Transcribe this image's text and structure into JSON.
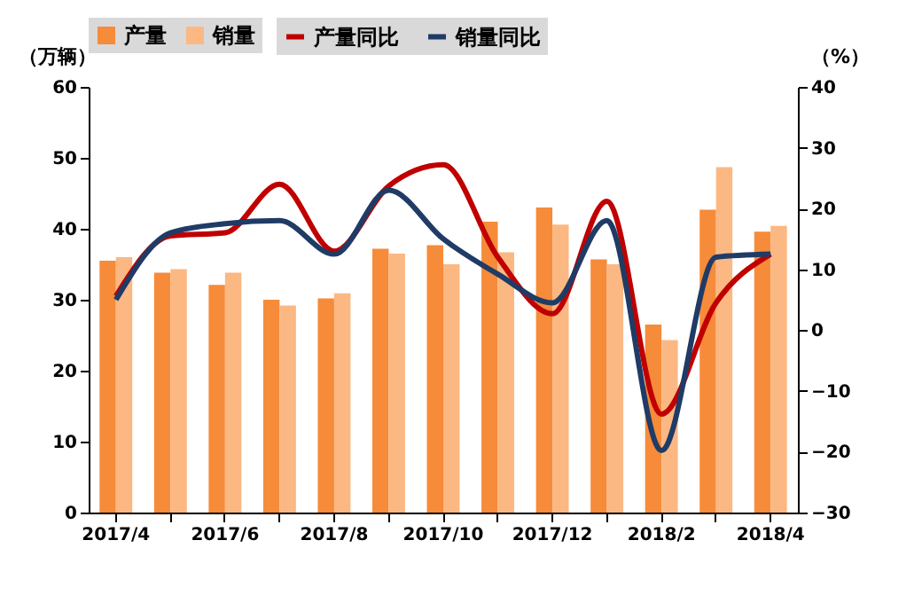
{
  "chart_data": {
    "type": "bar",
    "ylabel": "（万辆）",
    "y2label": "（%）",
    "categories": [
      "2017/4",
      null,
      "2017/6",
      null,
      "2017/8",
      null,
      "2017/10",
      null,
      "2017/12",
      null,
      "2018/2",
      null,
      "2018/4"
    ],
    "series": [
      {
        "name": "产量",
        "color": "#f68b3a",
        "values": [
          35.5,
          33.8,
          32.1,
          30.0,
          30.2,
          37.2,
          37.7,
          41.0,
          43.0,
          35.7,
          26.5,
          42.7,
          39.6
        ]
      },
      {
        "name": "销量",
        "color": "#fbb883",
        "values": [
          36.0,
          34.3,
          33.8,
          29.2,
          30.9,
          36.5,
          35.0,
          36.7,
          40.6,
          35.0,
          24.3,
          48.7,
          40.4
        ]
      },
      {
        "name": "产量同比",
        "color": "#c00000",
        "type": "line",
        "axis": "y2",
        "values": [
          5.6,
          15.5,
          16.0,
          24.0,
          13.0,
          23.7,
          27.2,
          12.0,
          2.7,
          21.2,
          -13.8,
          4.5,
          12.5
        ]
      },
      {
        "name": "销量同比",
        "color": "#1f3b66",
        "type": "line",
        "axis": "y2",
        "values": [
          5.0,
          16.0,
          17.5,
          18.0,
          12.5,
          23.0,
          15.0,
          9.2,
          4.5,
          18.0,
          -19.8,
          12.0,
          12.5
        ]
      }
    ],
    "ylim": [
      0,
      60
    ],
    "yticks": [
      0,
      10,
      20,
      30,
      40,
      50,
      60
    ],
    "y2lim": [
      -30,
      40
    ],
    "y2ticks": [
      -30,
      -20,
      -10,
      0,
      10,
      20,
      30,
      40
    ],
    "legend": "top",
    "grid": false
  }
}
